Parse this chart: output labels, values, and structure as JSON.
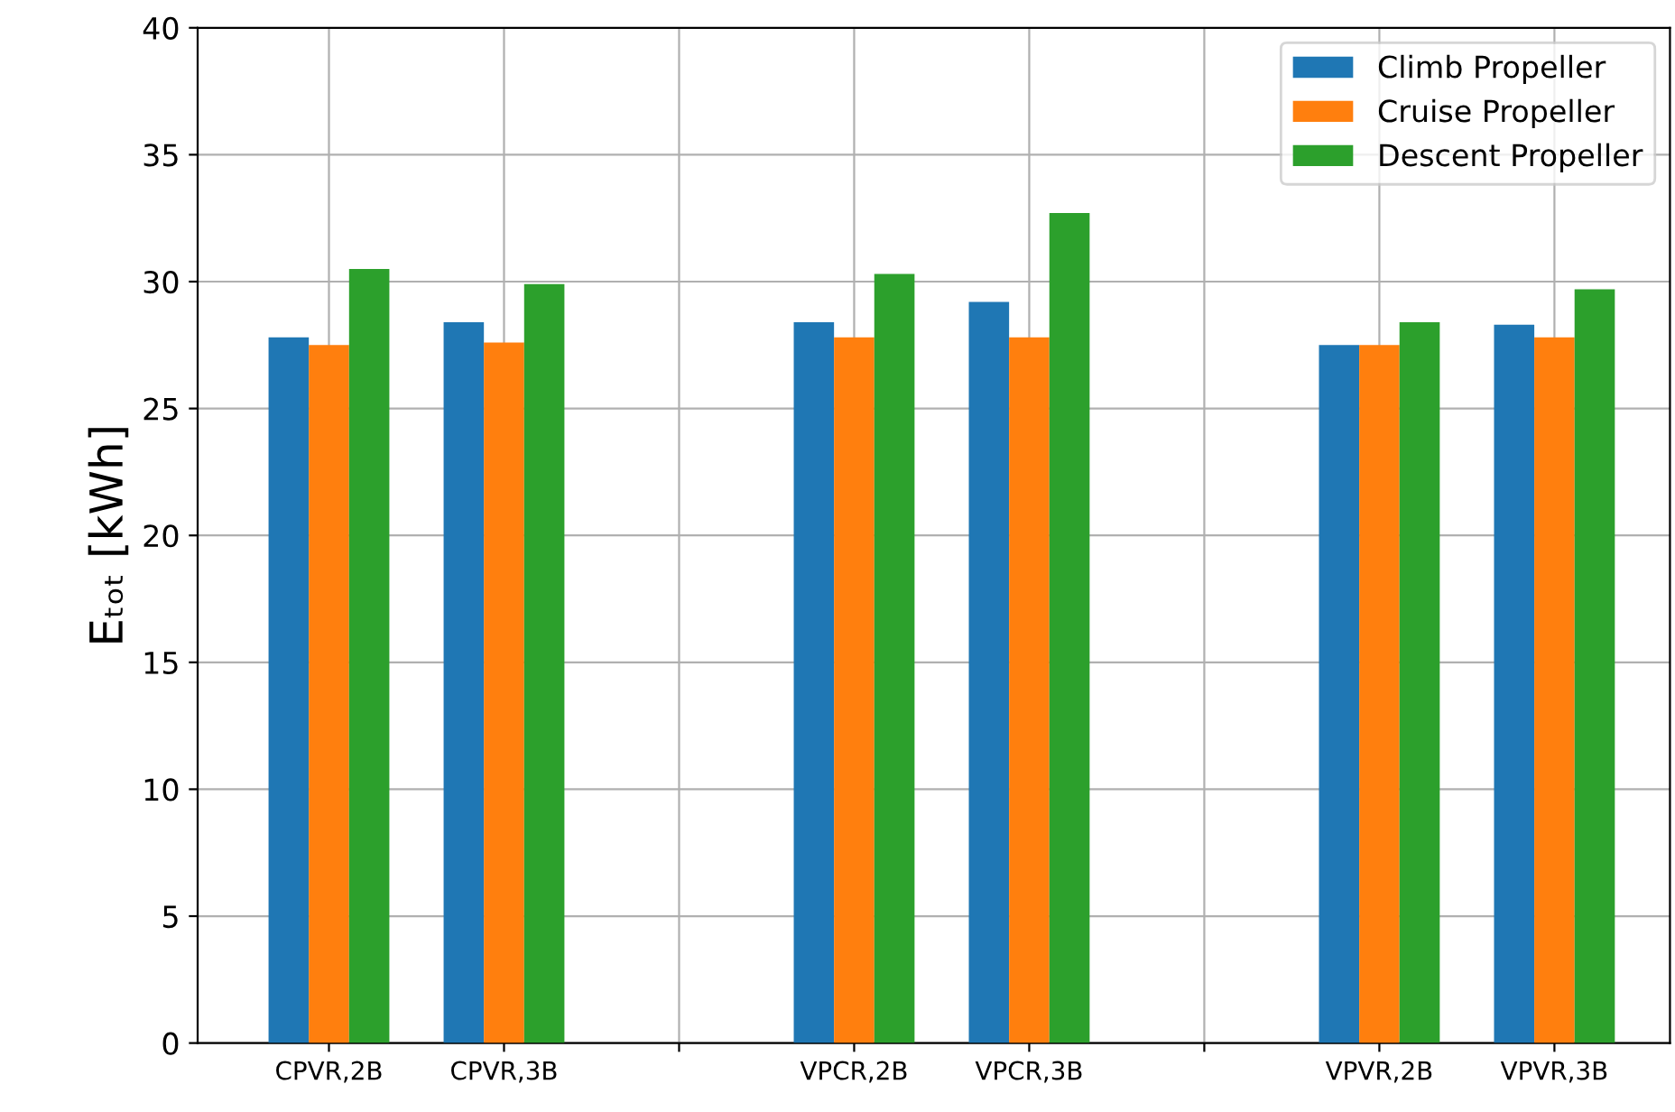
{
  "chart_data": {
    "type": "bar",
    "ylabel": "Eₜₒₜ [kWh]",
    "categories": [
      "CPVR,2B",
      "CPVR,3B",
      null,
      "VPCR,2B",
      "VPCR,3B",
      null,
      "VPVR,2B",
      "VPVR,3B"
    ],
    "series": [
      {
        "name": "Climb Propeller",
        "color": "#1f77b4",
        "values": [
          27.8,
          28.4,
          null,
          28.4,
          29.2,
          null,
          27.5,
          28.3
        ]
      },
      {
        "name": "Cruise Propeller",
        "color": "#ff7f0e",
        "values": [
          27.5,
          27.6,
          null,
          27.8,
          27.8,
          null,
          27.5,
          27.8
        ]
      },
      {
        "name": "Descent Propeller",
        "color": "#2ca02c",
        "values": [
          30.5,
          29.9,
          null,
          30.3,
          32.7,
          null,
          28.4,
          29.7
        ]
      }
    ],
    "ylim": [
      0,
      40
    ],
    "yticks": [
      0,
      5,
      10,
      15,
      20,
      25,
      30,
      35,
      40
    ],
    "grid": true,
    "legend": "top right"
  }
}
